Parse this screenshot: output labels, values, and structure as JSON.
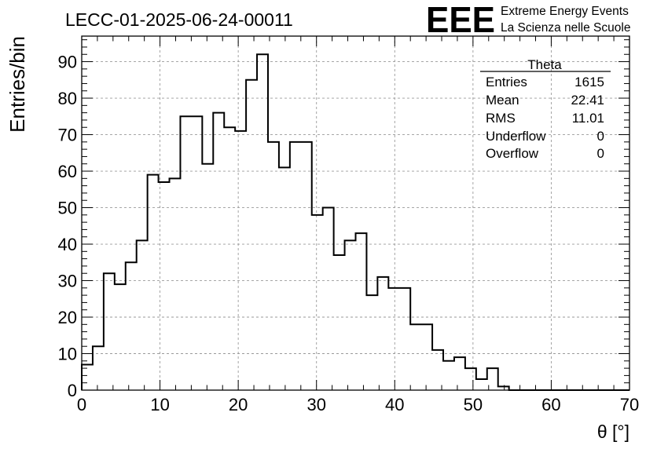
{
  "chart_data": {
    "type": "histogram",
    "title": "LECC-01-2025-06-24-00011",
    "xlabel": "θ [°]",
    "ylabel": "Entries/bin",
    "xlim": [
      0,
      70
    ],
    "ylim": [
      0,
      97
    ],
    "x_ticks": [
      0,
      10,
      20,
      30,
      40,
      50,
      60,
      70
    ],
    "y_ticks": [
      0,
      10,
      20,
      30,
      40,
      50,
      60,
      70,
      80,
      90
    ],
    "grid": true,
    "bin_width": 1.4,
    "bin_edges_start": 0,
    "values": [
      7,
      12,
      32,
      29,
      35,
      41,
      59,
      57,
      58,
      75,
      75,
      62,
      76,
      72,
      71,
      85,
      92,
      68,
      61,
      68,
      68,
      48,
      50,
      37,
      41,
      43,
      26,
      31,
      28,
      28,
      18,
      18,
      11,
      8,
      9,
      6,
      3,
      6,
      1,
      0,
      0,
      0,
      0,
      0,
      0,
      0,
      0,
      0,
      0,
      0
    ],
    "line_color": "#000000"
  },
  "stats_box": {
    "title": "Theta",
    "rows": [
      {
        "label": "Entries",
        "value": "1615"
      },
      {
        "label": "Mean",
        "value": "22.41"
      },
      {
        "label": "RMS",
        "value": "11.01"
      },
      {
        "label": "Underflow",
        "value": "0"
      },
      {
        "label": "Overflow",
        "value": "0"
      }
    ]
  },
  "logo": {
    "mark": "EEE",
    "line1": "Extreme Energy Events",
    "line2": "La Scienza nelle Scuole",
    "color": "#1a1aee"
  }
}
